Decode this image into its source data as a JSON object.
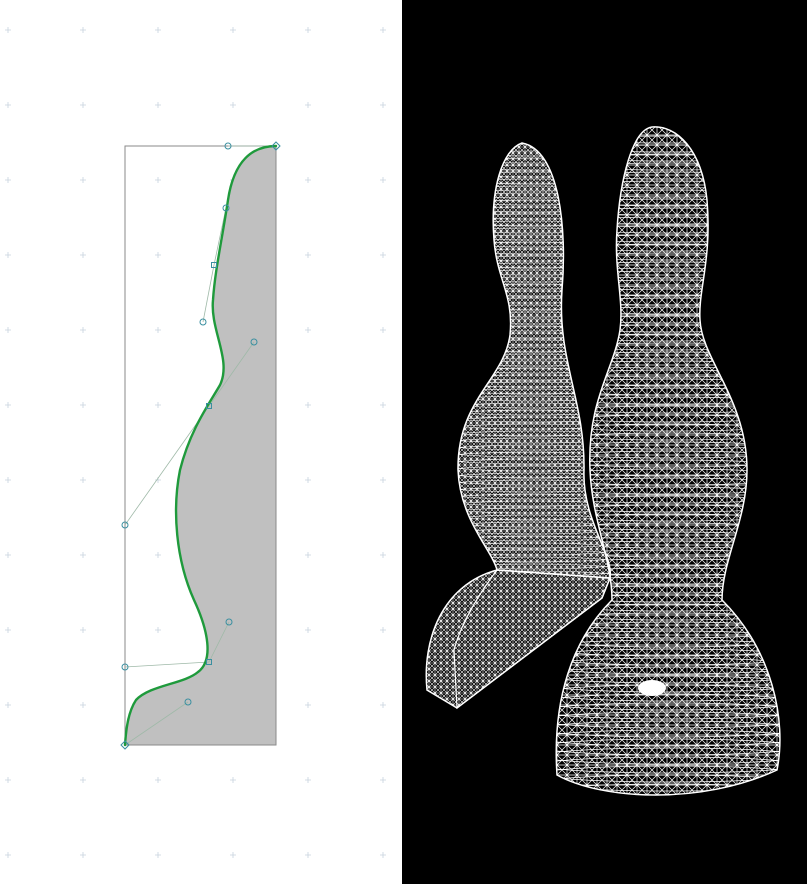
{
  "editor": {
    "background": "#ffffff",
    "grid_marker_color": "#c7d3de",
    "frame_color": "#8a8a8a",
    "fill_color": "#c0c0c0",
    "curve_color": "#1f9a3c",
    "control_point_color": "#3a8fa0",
    "handle_line_color": "#9fb9a8"
  },
  "viewport": {
    "background": "#000000",
    "wire_color": "#ffffff"
  }
}
